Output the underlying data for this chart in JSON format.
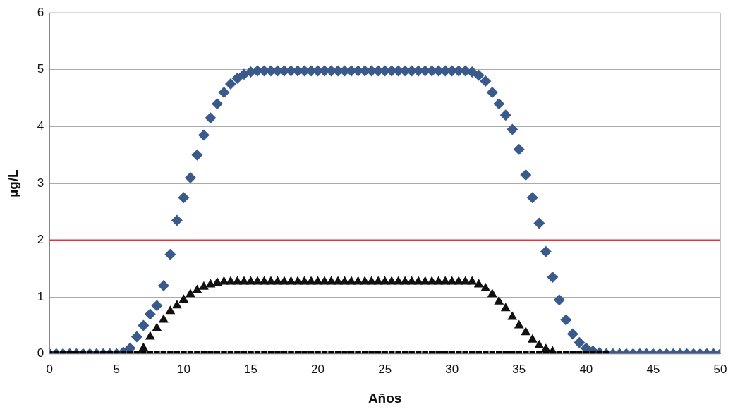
{
  "chart_data": {
    "type": "scatter",
    "xlabel": "Años",
    "ylabel": "µg/L",
    "xlim": [
      0,
      50
    ],
    "xticks": [
      0,
      5,
      10,
      15,
      20,
      25,
      30,
      35,
      40,
      45,
      50
    ],
    "ylim": [
      0,
      6
    ],
    "yticks": [
      0,
      1,
      2,
      3,
      4,
      5,
      6
    ],
    "grid": "y",
    "legend": false,
    "ref_lines": [
      {
        "axis": "y",
        "value": 2,
        "color": "#e8333a"
      }
    ],
    "series": [
      {
        "color": "#000000",
        "marker": "square",
        "x": [
          0,
          0.5,
          1,
          1.5,
          2,
          2.5,
          3,
          3.5,
          4,
          4.5,
          5,
          5.5,
          6,
          6.5,
          7,
          7.5,
          8,
          8.5,
          9,
          9.5,
          10,
          10.5,
          11,
          11.5,
          12,
          12.5,
          13,
          13.5,
          14,
          14.5,
          15,
          15.5,
          16,
          16.5,
          17,
          17.5,
          18,
          18.5,
          19,
          19.5,
          20,
          20.5,
          21,
          21.5,
          22,
          22.5,
          23,
          23.5,
          24,
          24.5,
          25,
          25.5,
          26,
          26.5,
          27,
          27.5,
          28,
          28.5,
          29,
          29.5,
          30,
          30.5,
          31,
          31.5,
          32,
          32.5,
          33,
          33.5,
          34,
          34.5,
          35,
          35.5,
          36,
          36.5,
          37,
          37.5,
          38,
          38.5,
          39,
          39.5,
          40,
          40.5,
          41,
          41.5
        ],
        "values": [
          0,
          0,
          0,
          0,
          0,
          0,
          0,
          0,
          0,
          0,
          0,
          0,
          0,
          0,
          0,
          0,
          0,
          0,
          0,
          0,
          0,
          0,
          0,
          0,
          0,
          0,
          0,
          0,
          0,
          0,
          0,
          0,
          0,
          0,
          0,
          0,
          0,
          0,
          0,
          0,
          0,
          0,
          0,
          0,
          0,
          0,
          0,
          0,
          0,
          0,
          0,
          0,
          0,
          0,
          0,
          0,
          0,
          0,
          0,
          0,
          0,
          0,
          0,
          0,
          0,
          0,
          0,
          0,
          0,
          0,
          0,
          0,
          0,
          0,
          0,
          0,
          0,
          0,
          0,
          0,
          0,
          0,
          0,
          0
        ]
      },
      {
        "color": "#3a5a8c",
        "marker": "diamond",
        "x": [
          0,
          0.5,
          1,
          1.5,
          2,
          2.5,
          3,
          3.5,
          4,
          4.5,
          5,
          5.5,
          6,
          6.5,
          7,
          7.5,
          8,
          8.5,
          9,
          9.5,
          10,
          10.5,
          11,
          11.5,
          12,
          12.5,
          13,
          13.5,
          14,
          14.5,
          15,
          15.5,
          16,
          16.5,
          17,
          17.5,
          18,
          18.5,
          19,
          19.5,
          20,
          20.5,
          21,
          21.5,
          22,
          22.5,
          23,
          23.5,
          24,
          24.5,
          25,
          25.5,
          26,
          26.5,
          27,
          27.5,
          28,
          28.5,
          29,
          29.5,
          30,
          30.5,
          31,
          31.5,
          32,
          32.5,
          33,
          33.5,
          34,
          34.5,
          35,
          35.5,
          36,
          36.5,
          37,
          37.5,
          38,
          38.5,
          39,
          39.5,
          40,
          40.5,
          41,
          41.5,
          42,
          42.5,
          43,
          43.5,
          44,
          44.5,
          45,
          45.5,
          46,
          46.5,
          47,
          47.5,
          48,
          48.5,
          49,
          49.5,
          50
        ],
        "values": [
          0,
          0,
          0,
          0,
          0,
          0,
          0,
          0,
          0,
          0,
          0,
          0.03,
          0.1,
          0.3,
          0.5,
          0.7,
          0.85,
          1.2,
          1.75,
          2.35,
          2.75,
          3.1,
          3.5,
          3.85,
          4.15,
          4.4,
          4.6,
          4.75,
          4.85,
          4.92,
          4.96,
          4.98,
          4.98,
          4.98,
          4.98,
          4.98,
          4.98,
          4.98,
          4.98,
          4.98,
          4.98,
          4.98,
          4.98,
          4.98,
          4.98,
          4.98,
          4.98,
          4.98,
          4.98,
          4.98,
          4.98,
          4.98,
          4.98,
          4.98,
          4.98,
          4.98,
          4.98,
          4.98,
          4.98,
          4.98,
          4.98,
          4.98,
          4.98,
          4.96,
          4.9,
          4.8,
          4.6,
          4.4,
          4.2,
          3.95,
          3.6,
          3.15,
          2.75,
          2.3,
          1.8,
          1.35,
          0.95,
          0.6,
          0.35,
          0.2,
          0.1,
          0.05,
          0.02,
          0,
          0,
          0,
          0,
          0,
          0,
          0,
          0,
          0,
          0,
          0,
          0,
          0,
          0,
          0,
          0,
          0,
          0
        ]
      },
      {
        "color": "#111111",
        "marker": "triangle",
        "x": [
          7,
          7.5,
          8,
          8.5,
          9,
          9.5,
          10,
          10.5,
          11,
          11.5,
          12,
          12.5,
          13,
          13.5,
          14,
          14.5,
          15,
          15.5,
          16,
          16.5,
          17,
          17.5,
          18,
          18.5,
          19,
          19.5,
          20,
          20.5,
          21,
          21.5,
          22,
          22.5,
          23,
          23.5,
          24,
          24.5,
          25,
          25.5,
          26,
          26.5,
          27,
          27.5,
          28,
          28.5,
          29,
          29.5,
          30,
          30.5,
          31,
          31.5,
          32,
          32.5,
          33,
          33.5,
          34,
          34.5,
          35,
          35.5,
          36,
          36.5,
          37,
          37.5
        ],
        "values": [
          0.1,
          0.3,
          0.45,
          0.6,
          0.75,
          0.85,
          0.95,
          1.05,
          1.12,
          1.18,
          1.22,
          1.25,
          1.27,
          1.27,
          1.27,
          1.27,
          1.27,
          1.27,
          1.27,
          1.27,
          1.27,
          1.27,
          1.27,
          1.27,
          1.27,
          1.27,
          1.27,
          1.27,
          1.27,
          1.27,
          1.27,
          1.27,
          1.27,
          1.27,
          1.27,
          1.27,
          1.27,
          1.27,
          1.27,
          1.27,
          1.27,
          1.27,
          1.27,
          1.27,
          1.27,
          1.27,
          1.27,
          1.27,
          1.27,
          1.27,
          1.22,
          1.15,
          1.05,
          0.92,
          0.8,
          0.65,
          0.5,
          0.38,
          0.25,
          0.15,
          0.08,
          0.04
        ]
      }
    ]
  }
}
